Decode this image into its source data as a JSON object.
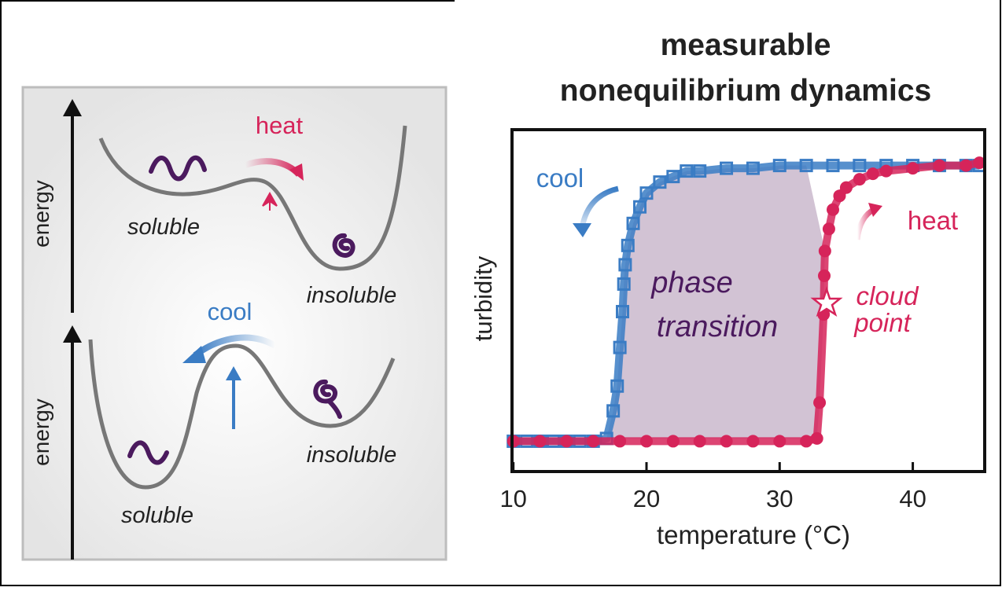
{
  "chart_data": {
    "type": "scatter",
    "title": [
      "measurable",
      "nonequilibrium dynamics"
    ],
    "x_label": "temperature (°C)",
    "y_label": "turbidity",
    "xlim": [
      9.9,
      45.4
    ],
    "xticks": [
      10,
      20,
      30,
      40
    ],
    "ylim": [
      -0.11,
      1.13
    ],
    "series": [
      {
        "name": "cool",
        "color": "#3a7cc4",
        "marker": "square",
        "x": [
          10,
          11,
          12,
          13,
          14,
          15,
          16,
          17,
          17.5,
          17.8,
          18,
          18.2,
          18.3,
          18.4,
          18.6,
          19,
          19.5,
          20,
          21,
          22,
          23,
          24,
          26,
          28,
          30,
          32,
          34,
          36,
          38,
          40,
          42,
          44,
          45
        ],
        "values": [
          0,
          0,
          0,
          0,
          0,
          0,
          0,
          0.01,
          0.11,
          0.2,
          0.34,
          0.47,
          0.57,
          0.64,
          0.71,
          0.79,
          0.85,
          0.9,
          0.94,
          0.96,
          0.98,
          0.98,
          0.99,
          0.99,
          1,
          1,
          1,
          1,
          1,
          1,
          1,
          1,
          1
        ]
      },
      {
        "name": "heat",
        "color": "#d6245a",
        "marker": "circle",
        "x": [
          10,
          12,
          14,
          16,
          18,
          20,
          22,
          24,
          26,
          28,
          30,
          32,
          32.8,
          33,
          33.3,
          33.35,
          33.4,
          33.7,
          34,
          34.5,
          35,
          36,
          37,
          38,
          40,
          42,
          44,
          45
        ],
        "values": [
          0,
          0,
          0,
          0,
          0,
          0,
          0,
          0,
          0,
          0,
          0,
          0,
          0.01,
          0.14,
          0.46,
          0.6,
          0.69,
          0.77,
          0.84,
          0.89,
          0.92,
          0.95,
          0.97,
          0.98,
          0.99,
          1,
          1,
          1.01
        ]
      }
    ],
    "annotations": {
      "region": [
        "phase",
        "transition"
      ],
      "cloud_point": [
        "cloud",
        "point"
      ]
    }
  },
  "diagram": {
    "top": {
      "axis": "energy",
      "arrow": "heat",
      "left_state": "soluble",
      "right_state": "insoluble"
    },
    "bottom": {
      "axis": "energy",
      "arrow": "cool",
      "left_state": "soluble",
      "right_state": "insoluble"
    }
  }
}
